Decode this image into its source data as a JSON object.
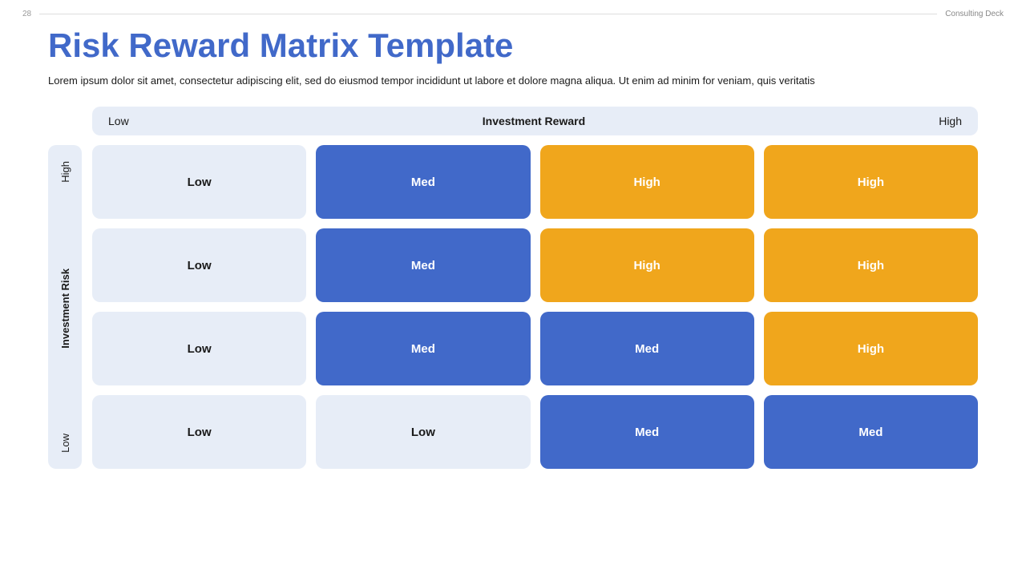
{
  "header": {
    "page_number": "28",
    "deck_label": "Consulting Deck"
  },
  "title": "Risk Reward Matrix Template",
  "subtitle": "Lorem ipsum dolor sit amet, consectetur adipiscing elit, sed do eiusmod tempor incididunt ut labore et dolore magna aliqua.  Ut enim ad minim for veniam, quis veritatis",
  "matrix": {
    "x_axis": {
      "label": "Investment Reward",
      "low": "Low",
      "high": "High"
    },
    "y_axis": {
      "label": "Investment Risk",
      "low": "Low",
      "high": "High"
    },
    "colors": {
      "low_bg": "#e7edf7",
      "low_text": "#1a1a1a",
      "med_bg": "#4169c9",
      "med_text": "#ffffff",
      "high_bg": "#f0a61c",
      "high_text": "#ffffff"
    },
    "cells": [
      [
        {
          "label": "Low",
          "level": "low"
        },
        {
          "label": "Med",
          "level": "med"
        },
        {
          "label": "High",
          "level": "high"
        },
        {
          "label": "High",
          "level": "high"
        }
      ],
      [
        {
          "label": "Low",
          "level": "low"
        },
        {
          "label": "Med",
          "level": "med"
        },
        {
          "label": "High",
          "level": "high"
        },
        {
          "label": "High",
          "level": "high"
        }
      ],
      [
        {
          "label": "Low",
          "level": "low"
        },
        {
          "label": "Med",
          "level": "med"
        },
        {
          "label": "Med",
          "level": "med"
        },
        {
          "label": "High",
          "level": "high"
        }
      ],
      [
        {
          "label": "Low",
          "level": "low"
        },
        {
          "label": "Low",
          "level": "low"
        },
        {
          "label": "Med",
          "level": "med"
        },
        {
          "label": "Med",
          "level": "med"
        }
      ]
    ]
  }
}
